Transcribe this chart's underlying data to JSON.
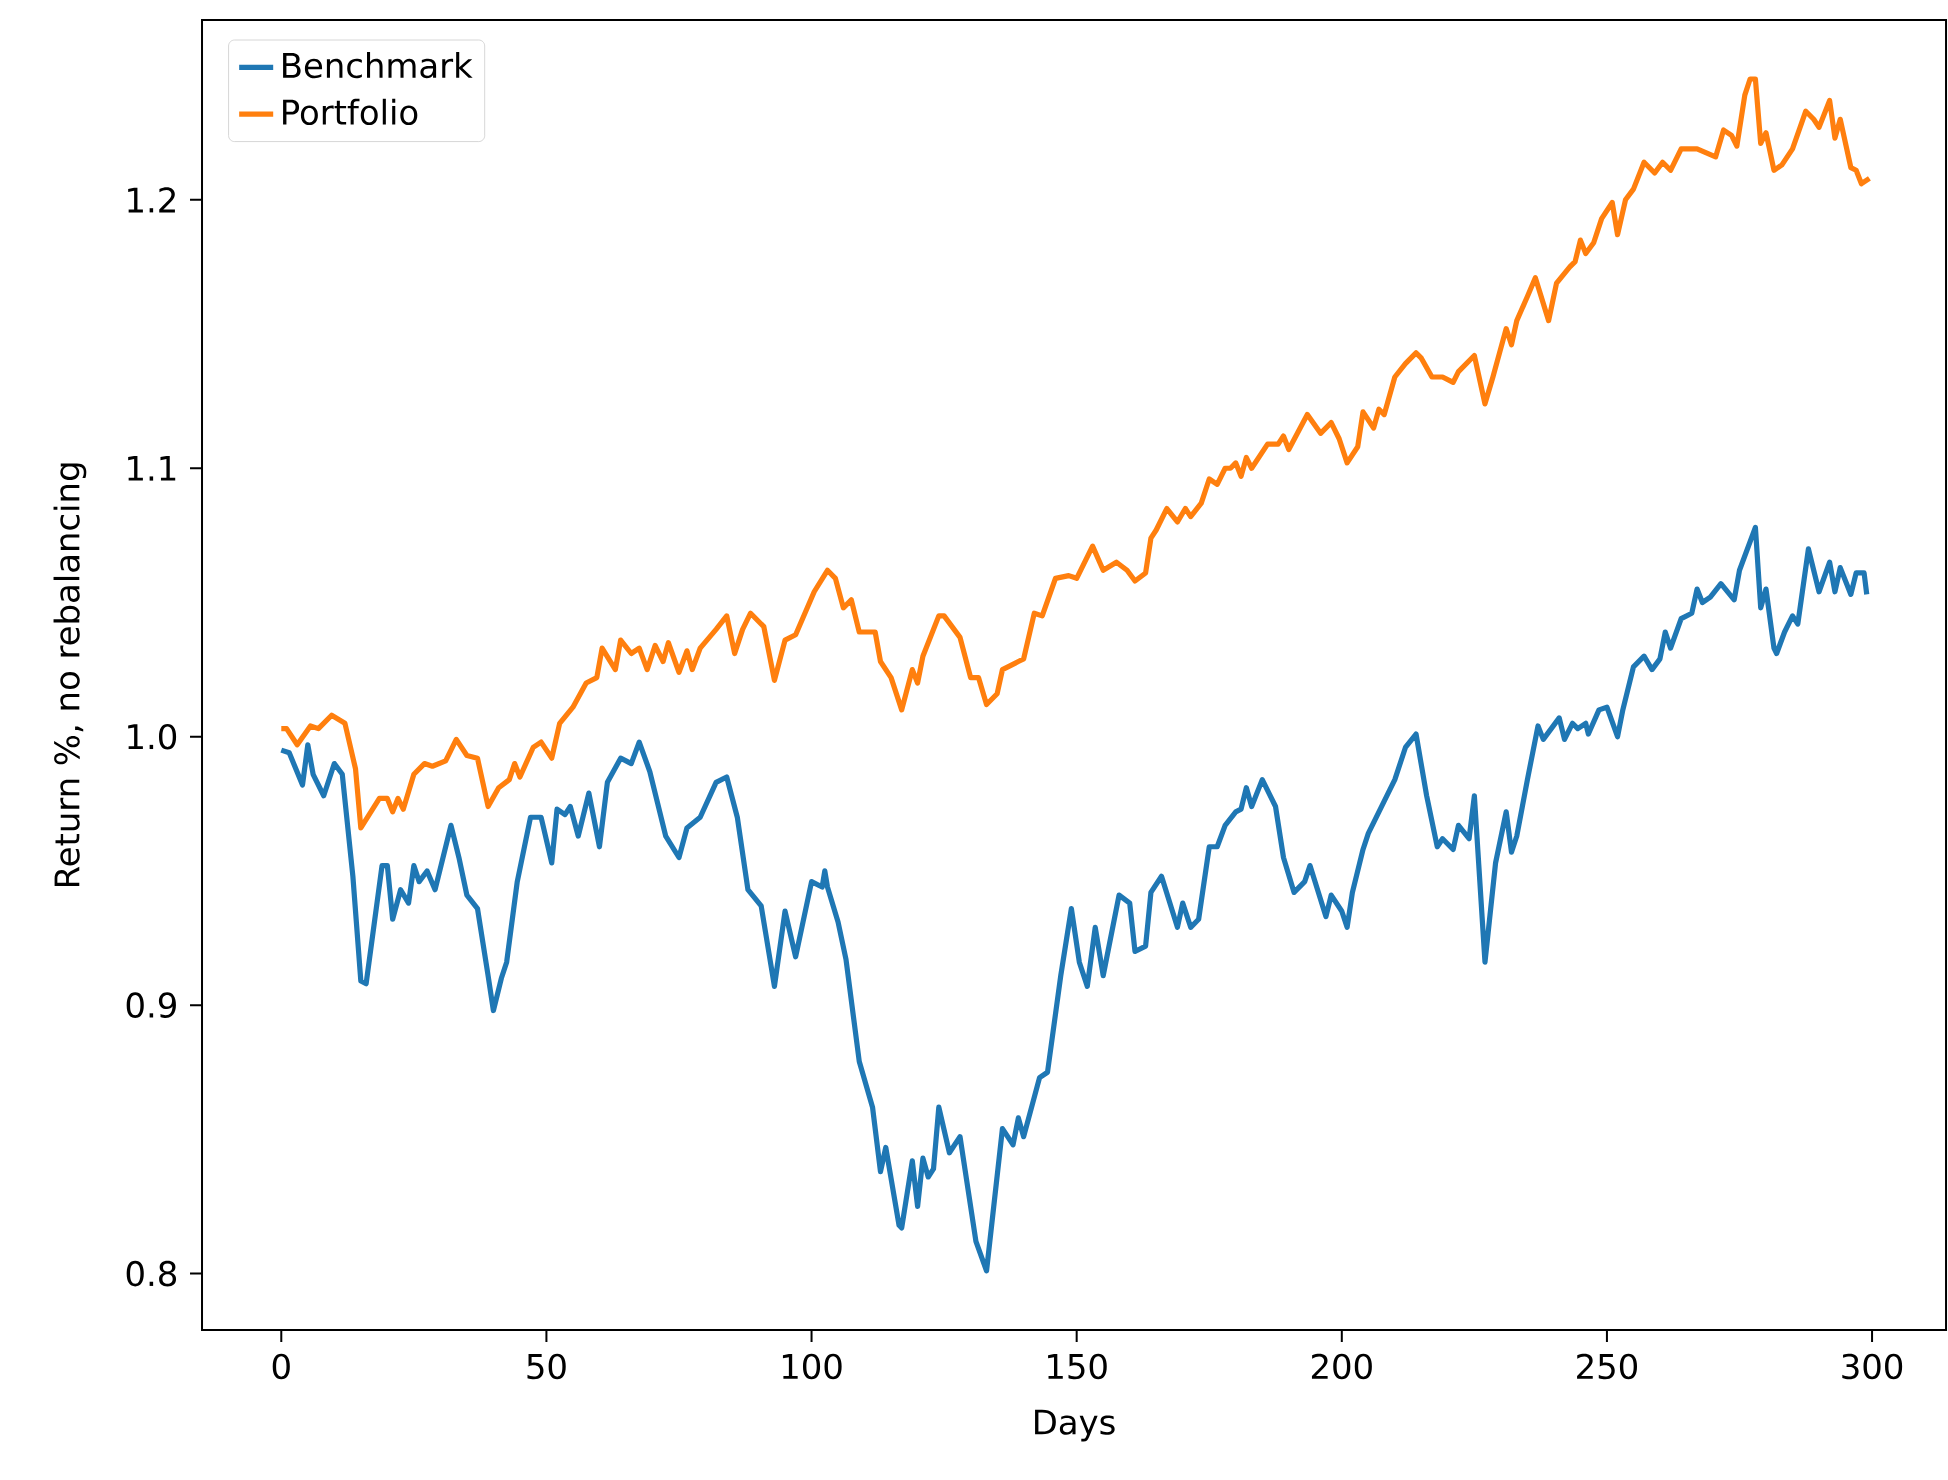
{
  "chart_data": {
    "type": "line",
    "xlabel": "Days",
    "ylabel": "Return %, no rebalancing",
    "xlim": [
      -14.95,
      313.95
    ],
    "ylim": [
      0.779,
      1.267
    ],
    "xticks": [
      0,
      50,
      100,
      150,
      200,
      250,
      300
    ],
    "yticks": [
      0.8,
      0.9,
      {
        "value": 1.0,
        "label": "1.0"
      },
      1.1,
      1.2
    ],
    "legend": "top left",
    "grid": false,
    "line_style": "solid",
    "series": [
      {
        "name": "Benchmark",
        "color": "#1f77b4",
        "x": [
          0,
          1.5,
          4,
          5,
          6,
          8,
          10,
          11.5,
          13.5,
          15,
          16,
          19,
          20,
          21,
          22.5,
          24,
          25,
          26,
          27.5,
          29,
          32,
          33.5,
          35,
          37,
          39,
          40,
          41.5,
          42.5,
          44.5,
          47,
          49,
          51,
          52,
          53.5,
          54.5,
          56,
          58,
          60,
          61.5,
          64,
          66,
          67.5,
          69.5,
          72.5,
          75,
          76.5,
          79,
          82,
          84,
          86,
          88,
          90.5,
          93,
          95,
          97,
          100,
          102,
          102.5,
          103,
          105,
          106.5,
          109,
          111.5,
          113,
          114,
          116.5,
          117,
          119,
          120,
          121,
          122,
          123,
          124,
          126,
          128,
          131,
          133,
          136,
          138,
          139,
          140,
          143,
          144.5,
          147,
          149,
          150.5,
          152,
          153.5,
          155,
          158,
          160,
          161,
          163,
          164,
          166,
          169,
          170,
          171.5,
          173,
          175,
          176.5,
          178,
          180,
          181,
          182,
          183,
          185,
          187.5,
          189,
          191,
          193,
          194,
          197,
          198,
          200,
          201,
          202,
          204,
          205,
          207,
          210,
          212,
          214,
          216,
          218,
          219,
          221,
          222,
          224,
          225,
          227,
          229,
          231,
          232,
          233,
          235,
          237,
          238,
          241,
          242,
          243.5,
          244.5,
          246,
          246.5,
          248.5,
          250,
          252,
          253,
          255,
          257,
          258.5,
          260,
          261,
          262,
          264,
          266,
          267,
          268,
          269.5,
          271.5,
          274,
          275,
          278,
          279,
          280,
          281.5,
          282,
          283.5,
          285,
          286,
          288,
          290,
          292,
          293,
          294,
          296,
          297,
          298.5,
          299
        ],
        "values": [
          0.995,
          0.994,
          0.982,
          0.997,
          0.986,
          0.978,
          0.99,
          0.986,
          0.948,
          0.909,
          0.908,
          0.952,
          0.952,
          0.932,
          0.943,
          0.938,
          0.952,
          0.946,
          0.95,
          0.943,
          0.967,
          0.955,
          0.941,
          0.936,
          0.911,
          0.898,
          0.91,
          0.916,
          0.946,
          0.97,
          0.97,
          0.953,
          0.973,
          0.971,
          0.974,
          0.963,
          0.979,
          0.959,
          0.983,
          0.992,
          0.99,
          0.998,
          0.987,
          0.963,
          0.955,
          0.966,
          0.97,
          0.983,
          0.985,
          0.97,
          0.943,
          0.937,
          0.907,
          0.935,
          0.918,
          0.946,
          0.944,
          0.95,
          0.944,
          0.931,
          0.917,
          0.879,
          0.862,
          0.838,
          0.847,
          0.818,
          0.817,
          0.842,
          0.825,
          0.843,
          0.836,
          0.839,
          0.862,
          0.845,
          0.851,
          0.812,
          0.801,
          0.854,
          0.848,
          0.858,
          0.851,
          0.873,
          0.875,
          0.911,
          0.936,
          0.916,
          0.907,
          0.929,
          0.911,
          0.941,
          0.938,
          0.92,
          0.922,
          0.942,
          0.948,
          0.929,
          0.938,
          0.929,
          0.932,
          0.959,
          0.959,
          0.967,
          0.972,
          0.973,
          0.981,
          0.974,
          0.984,
          0.974,
          0.955,
          0.942,
          0.946,
          0.952,
          0.933,
          0.941,
          0.935,
          0.929,
          0.942,
          0.958,
          0.964,
          0.972,
          0.984,
          0.996,
          1.001,
          0.978,
          0.959,
          0.962,
          0.958,
          0.967,
          0.962,
          0.978,
          0.916,
          0.953,
          0.972,
          0.957,
          0.963,
          0.984,
          1.004,
          0.999,
          1.007,
          0.999,
          1.005,
          1.003,
          1.005,
          1.001,
          1.01,
          1.011,
          1.0,
          1.01,
          1.026,
          1.03,
          1.025,
          1.029,
          1.039,
          1.033,
          1.044,
          1.046,
          1.055,
          1.05,
          1.052,
          1.057,
          1.051,
          1.062,
          1.078,
          1.048,
          1.055,
          1.033,
          1.031,
          1.039,
          1.045,
          1.042,
          1.07,
          1.054,
          1.065,
          1.054,
          1.063,
          1.053,
          1.061,
          1.061,
          1.053
        ]
      },
      {
        "name": "Portfolio",
        "color": "#ff7f0e",
        "x": [
          0,
          1,
          3,
          5.5,
          7,
          9.5,
          12,
          14,
          15,
          18.5,
          20,
          21,
          22,
          23,
          25,
          27,
          28.5,
          31,
          33,
          35,
          37,
          39,
          41,
          43,
          44,
          45,
          47.5,
          49,
          51,
          52.5,
          55,
          57.5,
          59.5,
          60.5,
          63,
          64,
          66,
          67.5,
          69,
          70.5,
          72,
          73,
          75,
          76.5,
          77.5,
          79,
          82,
          84,
          85.5,
          87,
          88.5,
          91,
          93,
          95,
          97,
          100.5,
          103,
          104.5,
          106,
          107.5,
          109,
          112,
          113,
          115,
          117,
          119,
          120,
          121,
          124,
          125,
          128,
          130,
          131.5,
          133,
          135,
          136,
          139,
          140,
          142,
          143.5,
          146,
          148.5,
          150,
          153,
          155,
          157.5,
          159.5,
          161,
          163,
          164,
          165,
          167,
          169,
          170.5,
          171.5,
          173.5,
          175,
          176.5,
          178,
          179,
          180,
          181,
          182,
          183,
          186,
          188,
          189,
          190,
          193.5,
          196,
          198,
          199.5,
          201,
          203,
          204,
          206,
          207,
          208,
          210,
          212,
          214,
          215,
          217,
          219,
          221,
          222,
          225,
          227,
          228.5,
          231,
          232,
          233,
          235,
          236.5,
          239,
          240.5,
          243,
          244,
          245,
          246,
          247.5,
          249,
          251,
          252,
          253.5,
          255,
          257,
          259,
          260.5,
          262,
          264,
          267,
          270.5,
          272,
          273.5,
          274.5,
          276,
          277,
          278,
          279,
          280,
          281.5,
          283,
          285,
          287.5,
          289,
          290,
          292,
          293,
          294,
          296,
          297,
          298,
          299.5
        ],
        "values": [
          1.003,
          1.003,
          0.997,
          1.004,
          1.003,
          1.008,
          1.005,
          0.988,
          0.966,
          0.977,
          0.977,
          0.972,
          0.977,
          0.973,
          0.986,
          0.99,
          0.989,
          0.991,
          0.999,
          0.993,
          0.992,
          0.974,
          0.981,
          0.984,
          0.99,
          0.985,
          0.996,
          0.998,
          0.992,
          1.005,
          1.011,
          1.02,
          1.022,
          1.033,
          1.025,
          1.036,
          1.031,
          1.033,
          1.025,
          1.034,
          1.028,
          1.035,
          1.024,
          1.032,
          1.025,
          1.033,
          1.04,
          1.045,
          1.031,
          1.04,
          1.046,
          1.041,
          1.021,
          1.036,
          1.038,
          1.054,
          1.062,
          1.059,
          1.048,
          1.051,
          1.039,
          1.039,
          1.028,
          1.022,
          1.01,
          1.025,
          1.02,
          1.03,
          1.045,
          1.045,
          1.037,
          1.022,
          1.022,
          1.012,
          1.016,
          1.025,
          1.028,
          1.029,
          1.046,
          1.045,
          1.059,
          1.06,
          1.059,
          1.071,
          1.062,
          1.065,
          1.062,
          1.058,
          1.061,
          1.074,
          1.077,
          1.085,
          1.08,
          1.085,
          1.082,
          1.087,
          1.096,
          1.094,
          1.1,
          1.1,
          1.102,
          1.097,
          1.104,
          1.1,
          1.109,
          1.109,
          1.112,
          1.107,
          1.12,
          1.113,
          1.117,
          1.111,
          1.102,
          1.108,
          1.121,
          1.115,
          1.122,
          1.12,
          1.134,
          1.139,
          1.143,
          1.141,
          1.134,
          1.134,
          1.132,
          1.136,
          1.142,
          1.124,
          1.134,
          1.152,
          1.146,
          1.155,
          1.164,
          1.171,
          1.155,
          1.169,
          1.175,
          1.177,
          1.185,
          1.18,
          1.184,
          1.193,
          1.199,
          1.187,
          1.2,
          1.204,
          1.214,
          1.21,
          1.214,
          1.211,
          1.219,
          1.219,
          1.216,
          1.226,
          1.224,
          1.22,
          1.239,
          1.245,
          1.245,
          1.221,
          1.225,
          1.211,
          1.213,
          1.219,
          1.233,
          1.23,
          1.227,
          1.237,
          1.223,
          1.23,
          1.212,
          1.211,
          1.206,
          1.208
        ]
      }
    ]
  }
}
